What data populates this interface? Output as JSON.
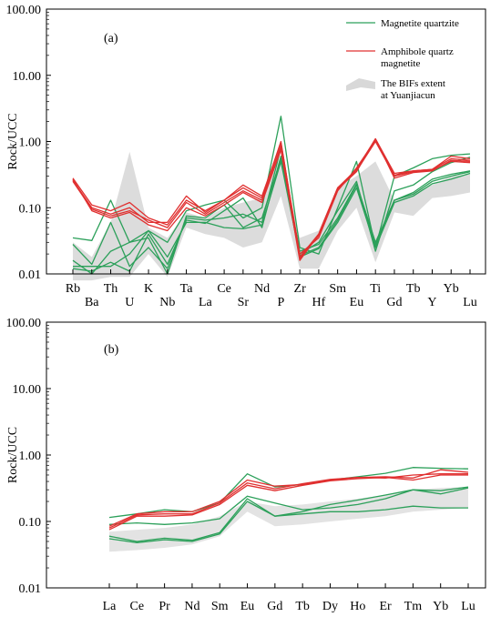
{
  "chart_data": [
    {
      "type": "line",
      "panel_label": "(a)",
      "ylabel": "Rock/UCC",
      "yscale": "log",
      "ylim": [
        0.01,
        100
      ],
      "yticks": [
        "0.01",
        "0.10",
        "1.00",
        "10.00",
        "100.00"
      ],
      "categories": [
        "Rb",
        "Ba",
        "Th",
        "U",
        "K",
        "Nb",
        "Ta",
        "La",
        "Ce",
        "Sr",
        "Nd",
        "P",
        "Zr",
        "Hf",
        "Sm",
        "Eu",
        "Ti",
        "Gd",
        "Tb",
        "Y",
        "Yb",
        "Lu"
      ],
      "legend": {
        "placement": "top-right",
        "entries": [
          {
            "label": "Magnetite quartzite",
            "color": "#2ca05a"
          },
          {
            "label": "Amphibole quartz magnetite",
            "color": "#e03030"
          },
          {
            "label": "The BIFs extent at Yuanjiacun",
            "color": "#d8d8d8"
          }
        ]
      },
      "band": {
        "name": "The BIFs extent at Yuanjiacun",
        "color": "#dcdcdc",
        "upper": [
          0.03,
          0.018,
          0.06,
          0.7,
          0.05,
          0.035,
          0.085,
          0.07,
          0.1,
          0.12,
          0.14,
          0.6,
          0.035,
          0.045,
          0.2,
          0.3,
          0.5,
          0.13,
          0.17,
          0.22,
          0.3,
          0.32
        ],
        "lower": [
          0.008,
          0.008,
          0.009,
          0.009,
          0.02,
          0.009,
          0.05,
          0.04,
          0.035,
          0.025,
          0.03,
          0.15,
          0.012,
          0.012,
          0.045,
          0.1,
          0.015,
          0.085,
          0.075,
          0.14,
          0.15,
          0.17
        ]
      },
      "series": [
        {
          "group": "Magnetite quartzite",
          "color": "#2ca05a",
          "values": [
            0.035,
            0.032,
            0.13,
            0.03,
            0.045,
            0.03,
            0.09,
            0.11,
            0.13,
            0.07,
            0.1,
            2.4,
            0.025,
            0.02,
            0.1,
            0.5,
            0.025,
            0.3,
            0.4,
            0.55,
            0.62,
            0.65
          ]
        },
        {
          "group": "Magnetite quartzite",
          "color": "#2ca05a",
          "values": [
            0.028,
            0.014,
            0.06,
            0.013,
            0.025,
            0.012,
            0.07,
            0.065,
            0.07,
            0.08,
            0.06,
            0.8,
            0.02,
            0.03,
            0.09,
            0.25,
            0.022,
            0.18,
            0.22,
            0.35,
            0.48,
            0.58
          ]
        },
        {
          "group": "Magnetite quartzite",
          "color": "#2ca05a",
          "values": [
            0.013,
            0.013,
            0.013,
            0.02,
            0.045,
            0.018,
            0.06,
            0.06,
            0.05,
            0.048,
            0.055,
            0.5,
            0.019,
            0.025,
            0.065,
            0.22,
            0.028,
            0.13,
            0.16,
            0.25,
            0.3,
            0.35
          ]
        },
        {
          "group": "Magnetite quartzite",
          "color": "#2ca05a",
          "values": [
            0.012,
            0.011,
            0.015,
            0.011,
            0.04,
            0.014,
            0.065,
            0.058,
            0.09,
            0.14,
            0.05,
            0.6,
            0.018,
            0.024,
            0.06,
            0.2,
            0.025,
            0.12,
            0.15,
            0.23,
            0.27,
            0.33
          ]
        },
        {
          "group": "Magnetite quartzite",
          "color": "#2ca05a",
          "values": [
            0.016,
            0.01,
            0.022,
            0.03,
            0.035,
            0.01,
            0.075,
            0.07,
            0.11,
            0.05,
            0.07,
            0.55,
            0.022,
            0.028,
            0.07,
            0.23,
            0.03,
            0.13,
            0.17,
            0.27,
            0.32,
            0.36
          ]
        },
        {
          "group": "Amphibole quartz magnetite",
          "color": "#e03030",
          "values": [
            0.28,
            0.11,
            0.09,
            0.12,
            0.07,
            0.055,
            0.13,
            0.09,
            0.13,
            0.2,
            0.14,
            1.0,
            0.018,
            0.04,
            0.2,
            0.38,
            1.1,
            0.33,
            0.36,
            0.38,
            0.55,
            0.52
          ]
        },
        {
          "group": "Amphibole quartz magnetite",
          "color": "#e03030",
          "values": [
            0.26,
            0.1,
            0.08,
            0.1,
            0.06,
            0.06,
            0.15,
            0.085,
            0.13,
            0.22,
            0.15,
            0.95,
            0.02,
            0.035,
            0.18,
            0.4,
            1.05,
            0.31,
            0.36,
            0.38,
            0.6,
            0.55
          ]
        },
        {
          "group": "Amphibole quartz magnetite",
          "color": "#e03030",
          "values": [
            0.25,
            0.095,
            0.075,
            0.09,
            0.065,
            0.05,
            0.12,
            0.08,
            0.12,
            0.18,
            0.13,
            0.85,
            0.017,
            0.038,
            0.19,
            0.35,
            1.1,
            0.28,
            0.34,
            0.36,
            0.52,
            0.5
          ]
        },
        {
          "group": "Amphibole quartz magnetite",
          "color": "#e03030",
          "values": [
            0.27,
            0.09,
            0.07,
            0.085,
            0.055,
            0.045,
            0.1,
            0.075,
            0.11,
            0.17,
            0.12,
            0.75,
            0.016,
            0.04,
            0.2,
            0.36,
            1.0,
            0.3,
            0.35,
            0.37,
            0.5,
            0.48
          ]
        }
      ]
    },
    {
      "type": "line",
      "panel_label": "(b)",
      "ylabel": "Rock/UCC",
      "yscale": "log",
      "ylim": [
        0.01,
        100
      ],
      "yticks": [
        "0.01",
        "0.10",
        "1.00",
        "10.00",
        "100.00"
      ],
      "categories": [
        "La",
        "Ce",
        "Pr",
        "Nd",
        "Sm",
        "Eu",
        "Gd",
        "Tb",
        "Dy",
        "Ho",
        "Er",
        "Tm",
        "Yb",
        "Lu"
      ],
      "band": {
        "color": "#e3e3e3",
        "upper": [
          0.07,
          0.075,
          0.08,
          0.09,
          0.12,
          0.2,
          0.17,
          0.18,
          0.2,
          0.22,
          0.25,
          0.3,
          0.32,
          0.33
        ],
        "lower": [
          0.035,
          0.037,
          0.04,
          0.045,
          0.06,
          0.14,
          0.085,
          0.09,
          0.1,
          0.11,
          0.12,
          0.14,
          0.15,
          0.16
        ]
      },
      "series": [
        {
          "group": "Magnetite quartzite",
          "color": "#2ca05a",
          "values": [
            0.115,
            0.13,
            0.15,
            0.14,
            0.19,
            0.52,
            0.33,
            0.36,
            0.42,
            0.47,
            0.53,
            0.65,
            0.63,
            0.62
          ]
        },
        {
          "group": "Magnetite quartzite",
          "color": "#2ca05a",
          "values": [
            0.09,
            0.095,
            0.09,
            0.095,
            0.11,
            0.24,
            0.19,
            0.15,
            0.16,
            0.18,
            0.22,
            0.3,
            0.29,
            0.33
          ]
        },
        {
          "group": "Magnetite quartzite",
          "color": "#2ca05a",
          "values": [
            0.06,
            0.05,
            0.056,
            0.052,
            0.068,
            0.22,
            0.12,
            0.14,
            0.18,
            0.21,
            0.25,
            0.3,
            0.26,
            0.32
          ]
        },
        {
          "group": "Magnetite quartzite",
          "color": "#2ca05a",
          "values": [
            0.055,
            0.048,
            0.053,
            0.05,
            0.065,
            0.2,
            0.12,
            0.13,
            0.14,
            0.14,
            0.15,
            0.17,
            0.16,
            0.16
          ]
        },
        {
          "group": "Amphibole quartz magnetite",
          "color": "#e03030",
          "values": [
            0.085,
            0.13,
            0.14,
            0.14,
            0.2,
            0.42,
            0.34,
            0.36,
            0.42,
            0.46,
            0.45,
            0.5,
            0.52,
            0.52
          ]
        },
        {
          "group": "Amphibole quartz magnetite",
          "color": "#e03030",
          "values": [
            0.08,
            0.125,
            0.13,
            0.13,
            0.19,
            0.38,
            0.31,
            0.37,
            0.43,
            0.46,
            0.47,
            0.45,
            0.6,
            0.55
          ]
        },
        {
          "group": "Amphibole quartz magnetite",
          "color": "#e03030",
          "values": [
            0.075,
            0.12,
            0.12,
            0.125,
            0.18,
            0.35,
            0.29,
            0.35,
            0.41,
            0.44,
            0.46,
            0.42,
            0.5,
            0.5
          ]
        }
      ]
    }
  ]
}
